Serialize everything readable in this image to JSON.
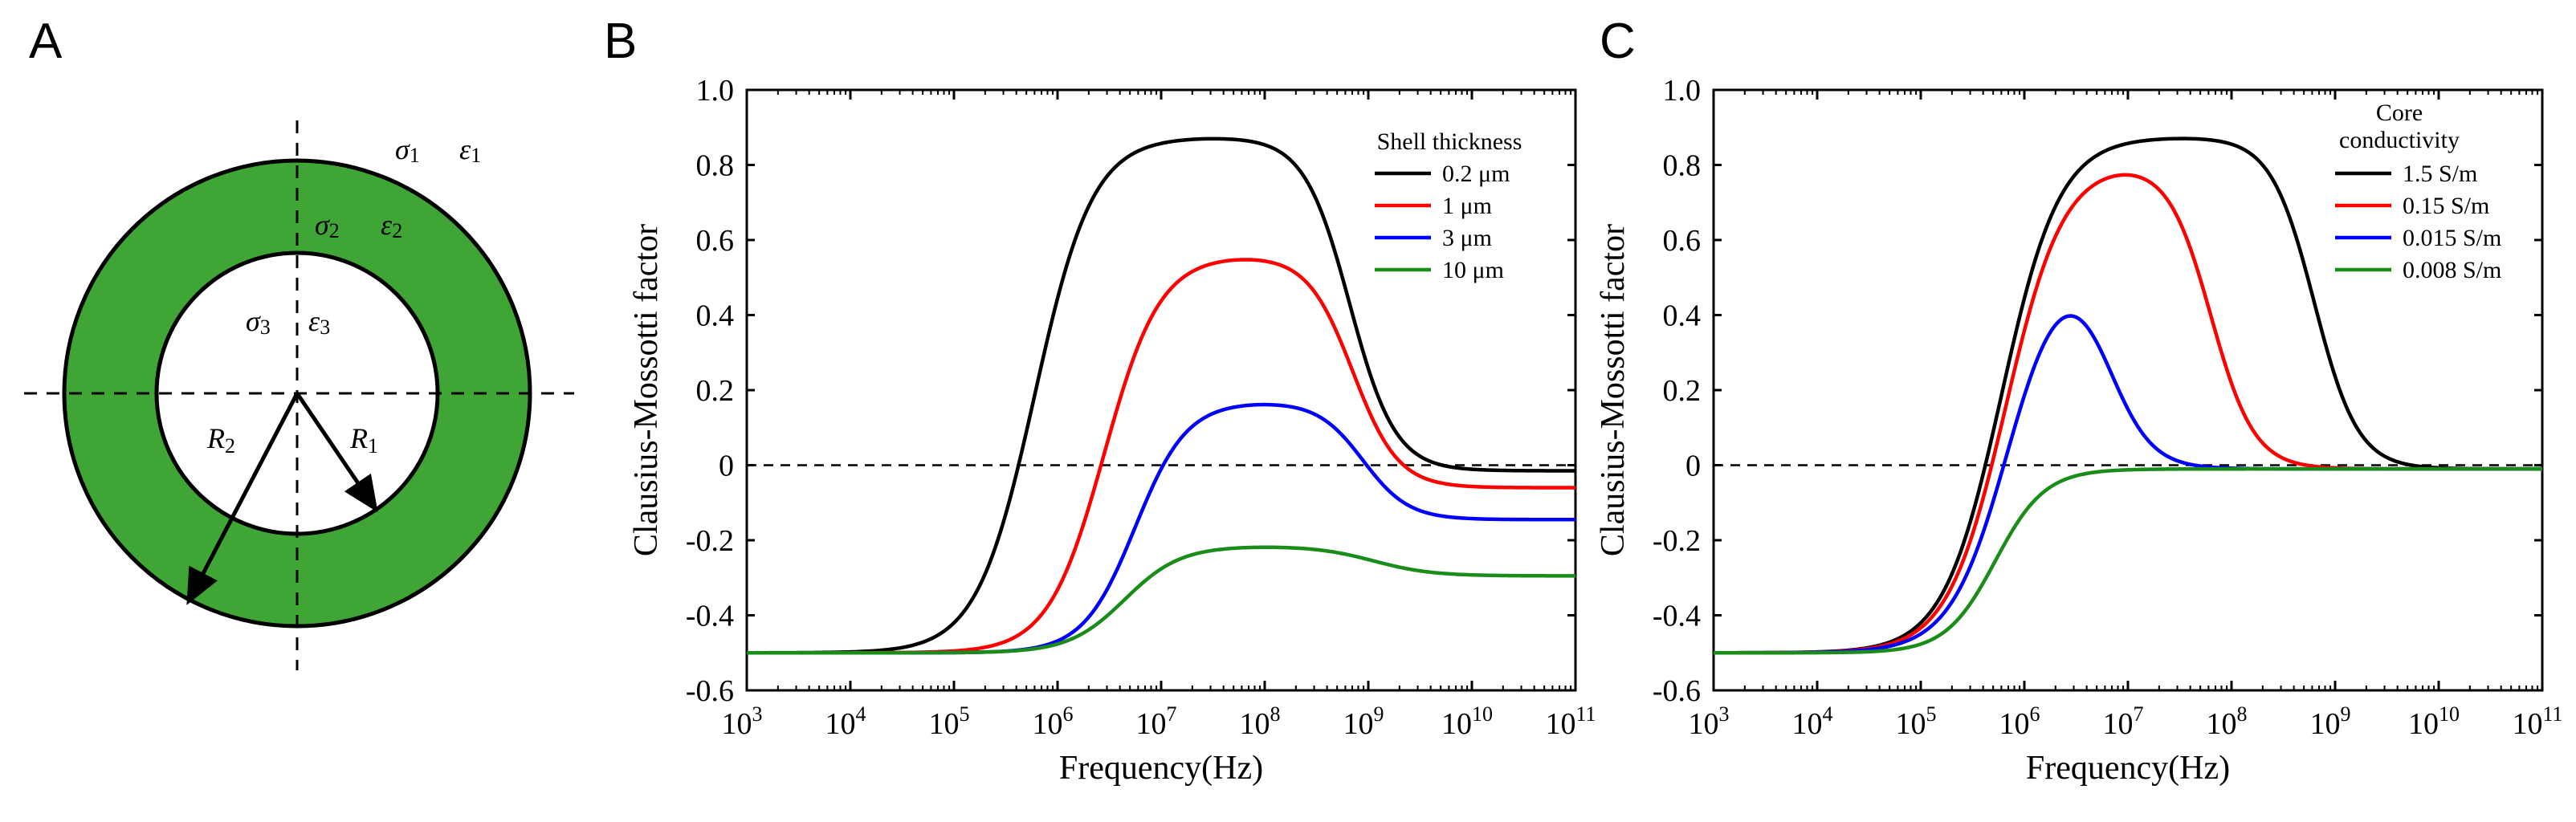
{
  "panel_labels": {
    "a": "A",
    "b": "B",
    "c": "C"
  },
  "diagram": {
    "labels": {
      "sigma1": "σ",
      "sub1": "1",
      "eps1": "ε",
      "eps1_sub": "1",
      "sigma2": "σ",
      "sub2": "2",
      "eps2": "ε",
      "eps2_sub": "2",
      "sigma3": "σ",
      "sub3": "3",
      "eps3": "ε",
      "eps3_sub": "3",
      "r1": "R",
      "r1_sub": "1",
      "r2": "R",
      "r2_sub": "2"
    },
    "colors": {
      "shell": "#3fa535",
      "core": "#ffffff",
      "outline": "#000000"
    }
  },
  "chart_data": [
    {
      "type": "line",
      "panel": "B",
      "xlabel": "Frequency(Hz)",
      "ylabel": "Clausius-Mossotti factor",
      "xscale": "log",
      "xlim_exp": [
        3,
        11
      ],
      "ylim": [
        -0.6,
        1.0
      ],
      "yticks": [
        "-0.6",
        "-0.4",
        "-0.2",
        "0",
        "0.2",
        "0.4",
        "0.6",
        "0.8",
        "1.0"
      ],
      "xtick_exponents": [
        "3",
        "4",
        "5",
        "6",
        "7",
        "8",
        "9",
        "10",
        "11"
      ],
      "x_base": "10",
      "zero_line": "dashed",
      "legend_title": "Shell thickness",
      "series": [
        {
          "name": "0.2 μm",
          "color": "#000000",
          "low": -0.5,
          "mid": 0.875,
          "high": -0.015,
          "f1_exp": 5.78,
          "w1": 0.28,
          "f2_exp": 8.82,
          "w2": 0.22
        },
        {
          "name": "1 μm",
          "color": "#ff0000",
          "low": -0.5,
          "mid": 0.56,
          "high": -0.06,
          "f1_exp": 6.45,
          "w1": 0.27,
          "f2_exp": 8.85,
          "w2": 0.22
        },
        {
          "name": "3 μm",
          "color": "#0000ff",
          "low": -0.5,
          "mid": 0.17,
          "high": -0.145,
          "f1_exp": 6.75,
          "w1": 0.25,
          "f2_exp": 8.95,
          "w2": 0.22
        },
        {
          "name": "10 μm",
          "color": "#1a8c1a",
          "low": -0.5,
          "mid": -0.215,
          "high": -0.295,
          "f1_exp": 6.65,
          "w1": 0.27,
          "f2_exp": 9.05,
          "w2": 0.28
        }
      ]
    },
    {
      "type": "line",
      "panel": "C",
      "xlabel": "Frequency(Hz)",
      "ylabel": "Clausius-Mossotti factor",
      "xscale": "log",
      "xlim_exp": [
        3,
        11
      ],
      "ylim": [
        -0.6,
        1.0
      ],
      "yticks": [
        "-0.6",
        "-0.4",
        "-0.2",
        "0",
        "0.2",
        "0.4",
        "0.6",
        "0.8",
        "1.0"
      ],
      "xtick_exponents": [
        "3",
        "4",
        "5",
        "6",
        "7",
        "8",
        "9",
        "10",
        "11"
      ],
      "x_base": "10",
      "zero_line": "dashed",
      "legend_title": "Core conductivity",
      "legend_title_lines": [
        "Core",
        "conductivity"
      ],
      "series": [
        {
          "name": "1.5 S/m",
          "color": "#000000",
          "low": -0.5,
          "mid": 0.875,
          "high": -0.01,
          "f1_exp": 5.78,
          "w1": 0.28,
          "f2_exp": 8.8,
          "w2": 0.21
        },
        {
          "name": "0.15 S/m",
          "color": "#ff0000",
          "low": -0.5,
          "mid": 0.81,
          "high": -0.01,
          "f1_exp": 5.82,
          "w1": 0.28,
          "f2_exp": 7.8,
          "w2": 0.21
        },
        {
          "name": "0.015 S/m",
          "color": "#0000ff",
          "low": -0.5,
          "mid": 0.6,
          "high": -0.01,
          "f1_exp": 5.85,
          "w1": 0.28,
          "f2_exp": 6.8,
          "w2": 0.21
        },
        {
          "name": "0.008 S/m",
          "color": "#1a8c1a",
          "low": -0.5,
          "mid": -0.01,
          "high": -0.01,
          "f1_exp": 5.65,
          "w1": 0.24,
          "f2_exp": 9.0,
          "w2": 0.22
        }
      ]
    }
  ]
}
